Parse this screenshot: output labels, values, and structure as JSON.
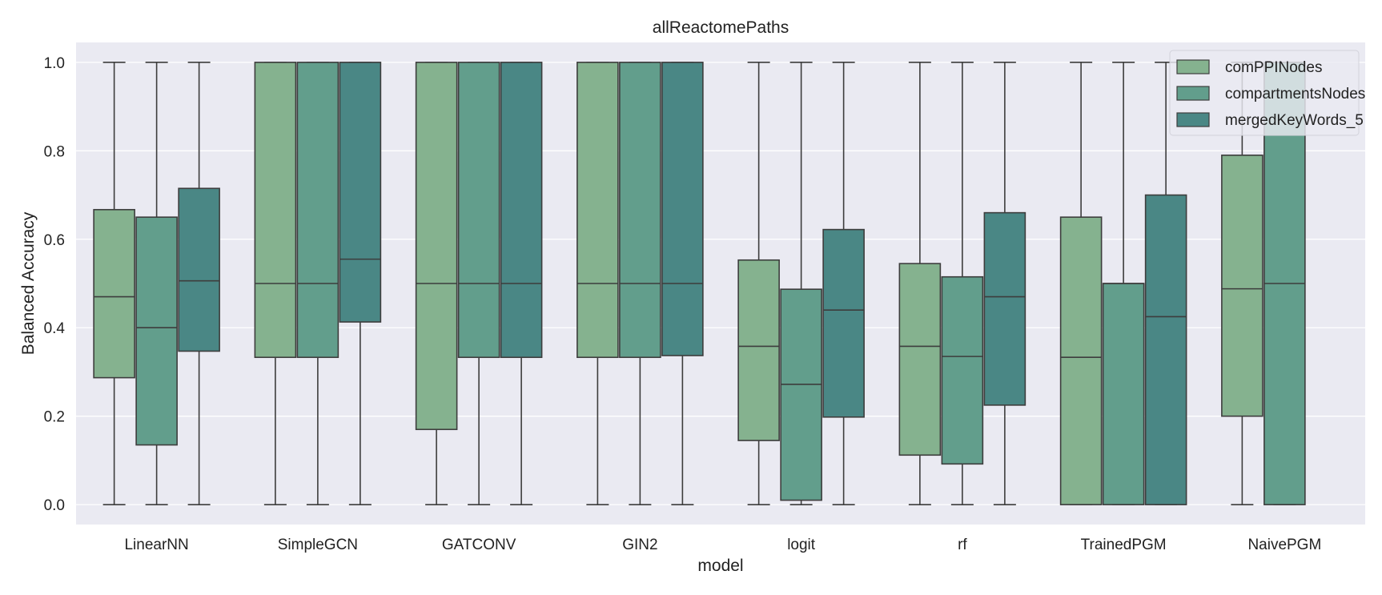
{
  "chart_data": {
    "type": "box",
    "title": "allReactomePaths",
    "xlabel": "model",
    "ylabel": "Balanced Accuracy",
    "ylim": [
      -0.045,
      1.045
    ],
    "yticks": [
      "0.0",
      "0.2",
      "0.4",
      "0.6",
      "0.8",
      "1.0"
    ],
    "grid": true,
    "legend_position": "top-right",
    "categories": [
      "LinearNN",
      "SimpleGCN",
      "GATCONV",
      "GIN2",
      "logit",
      "rf",
      "TrainedPGM",
      "NaivePGM"
    ],
    "series": [
      {
        "name": "comPPINodes",
        "color": "#85b28f",
        "boxes": [
          {
            "min": 0.0,
            "q1": 0.287,
            "median": 0.47,
            "q3": 0.667,
            "max": 1.0
          },
          {
            "min": 0.0,
            "q1": 0.333,
            "median": 0.5,
            "q3": 1.0,
            "max": 1.0
          },
          {
            "min": 0.0,
            "q1": 0.17,
            "median": 0.5,
            "q3": 1.0,
            "max": 1.0
          },
          {
            "min": 0.0,
            "q1": 0.333,
            "median": 0.5,
            "q3": 1.0,
            "max": 1.0
          },
          {
            "min": 0.0,
            "q1": 0.145,
            "median": 0.358,
            "q3": 0.553,
            "max": 1.0
          },
          {
            "min": 0.0,
            "q1": 0.112,
            "median": 0.358,
            "q3": 0.545,
            "max": 1.0
          },
          {
            "min": 0.0,
            "q1": 0.0,
            "median": 0.333,
            "q3": 0.65,
            "max": 1.0
          },
          {
            "min": 0.0,
            "q1": 0.2,
            "median": 0.488,
            "q3": 0.79,
            "max": 1.0
          }
        ]
      },
      {
        "name": "compartmentsNodes",
        "color": "#629e8c",
        "boxes": [
          {
            "min": 0.0,
            "q1": 0.135,
            "median": 0.4,
            "q3": 0.65,
            "max": 1.0
          },
          {
            "min": 0.0,
            "q1": 0.333,
            "median": 0.5,
            "q3": 1.0,
            "max": 1.0
          },
          {
            "min": 0.0,
            "q1": 0.333,
            "median": 0.5,
            "q3": 1.0,
            "max": 1.0
          },
          {
            "min": 0.0,
            "q1": 0.333,
            "median": 0.5,
            "q3": 1.0,
            "max": 1.0
          },
          {
            "min": 0.0,
            "q1": 0.01,
            "median": 0.272,
            "q3": 0.487,
            "max": 1.0
          },
          {
            "min": 0.0,
            "q1": 0.092,
            "median": 0.335,
            "q3": 0.515,
            "max": 1.0
          },
          {
            "min": 0.0,
            "q1": 0.0,
            "median": 0.5,
            "q3": 0.5,
            "max": 1.0
          },
          {
            "min": 0.0,
            "q1": 0.0,
            "median": 0.5,
            "q3": 1.0,
            "max": 1.0
          }
        ]
      },
      {
        "name": "mergedKeyWords_5",
        "color": "#4a8785",
        "boxes": [
          {
            "min": 0.0,
            "q1": 0.347,
            "median": 0.506,
            "q3": 0.715,
            "max": 1.0
          },
          {
            "min": 0.0,
            "q1": 0.413,
            "median": 0.555,
            "q3": 1.0,
            "max": 1.0
          },
          {
            "min": 0.0,
            "q1": 0.333,
            "median": 0.5,
            "q3": 1.0,
            "max": 1.0
          },
          {
            "min": 0.0,
            "q1": 0.337,
            "median": 0.5,
            "q3": 1.0,
            "max": 1.0
          },
          {
            "min": 0.0,
            "q1": 0.198,
            "median": 0.44,
            "q3": 0.622,
            "max": 1.0
          },
          {
            "min": 0.0,
            "q1": 0.225,
            "median": 0.47,
            "q3": 0.66,
            "max": 1.0
          },
          {
            "min": 0.0,
            "q1": 0.0,
            "median": 0.425,
            "q3": 0.7,
            "max": 1.0
          },
          null
        ]
      }
    ]
  }
}
